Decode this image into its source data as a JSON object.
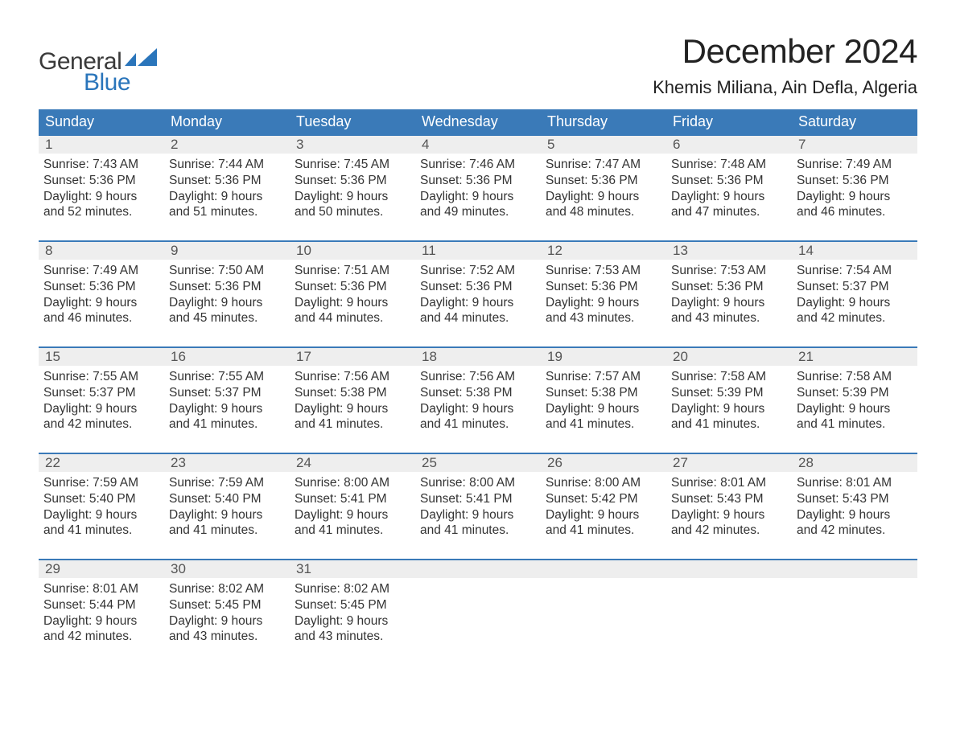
{
  "brand": {
    "word1": "General",
    "word2": "Blue",
    "mark_color": "#2a75bb"
  },
  "title": "December 2024",
  "location": "Khemis Miliana, Ain Defla, Algeria",
  "colors": {
    "header_bg": "#3a7ab8",
    "header_text": "#ffffff",
    "daynum_bg": "#eeeeee",
    "text": "#333333",
    "rule": "#3a7ab8",
    "page_bg": "#ffffff"
  },
  "weekdays": [
    "Sunday",
    "Monday",
    "Tuesday",
    "Wednesday",
    "Thursday",
    "Friday",
    "Saturday"
  ],
  "labels": {
    "sunrise": "Sunrise:",
    "sunset": "Sunset:",
    "daylight": "Daylight:"
  },
  "weeks": [
    [
      {
        "n": "1",
        "sunrise": "7:43 AM",
        "sunset": "5:36 PM",
        "daylight1": "9 hours",
        "daylight2": "and 52 minutes."
      },
      {
        "n": "2",
        "sunrise": "7:44 AM",
        "sunset": "5:36 PM",
        "daylight1": "9 hours",
        "daylight2": "and 51 minutes."
      },
      {
        "n": "3",
        "sunrise": "7:45 AM",
        "sunset": "5:36 PM",
        "daylight1": "9 hours",
        "daylight2": "and 50 minutes."
      },
      {
        "n": "4",
        "sunrise": "7:46 AM",
        "sunset": "5:36 PM",
        "daylight1": "9 hours",
        "daylight2": "and 49 minutes."
      },
      {
        "n": "5",
        "sunrise": "7:47 AM",
        "sunset": "5:36 PM",
        "daylight1": "9 hours",
        "daylight2": "and 48 minutes."
      },
      {
        "n": "6",
        "sunrise": "7:48 AM",
        "sunset": "5:36 PM",
        "daylight1": "9 hours",
        "daylight2": "and 47 minutes."
      },
      {
        "n": "7",
        "sunrise": "7:49 AM",
        "sunset": "5:36 PM",
        "daylight1": "9 hours",
        "daylight2": "and 46 minutes."
      }
    ],
    [
      {
        "n": "8",
        "sunrise": "7:49 AM",
        "sunset": "5:36 PM",
        "daylight1": "9 hours",
        "daylight2": "and 46 minutes."
      },
      {
        "n": "9",
        "sunrise": "7:50 AM",
        "sunset": "5:36 PM",
        "daylight1": "9 hours",
        "daylight2": "and 45 minutes."
      },
      {
        "n": "10",
        "sunrise": "7:51 AM",
        "sunset": "5:36 PM",
        "daylight1": "9 hours",
        "daylight2": "and 44 minutes."
      },
      {
        "n": "11",
        "sunrise": "7:52 AM",
        "sunset": "5:36 PM",
        "daylight1": "9 hours",
        "daylight2": "and 44 minutes."
      },
      {
        "n": "12",
        "sunrise": "7:53 AM",
        "sunset": "5:36 PM",
        "daylight1": "9 hours",
        "daylight2": "and 43 minutes."
      },
      {
        "n": "13",
        "sunrise": "7:53 AM",
        "sunset": "5:36 PM",
        "daylight1": "9 hours",
        "daylight2": "and 43 minutes."
      },
      {
        "n": "14",
        "sunrise": "7:54 AM",
        "sunset": "5:37 PM",
        "daylight1": "9 hours",
        "daylight2": "and 42 minutes."
      }
    ],
    [
      {
        "n": "15",
        "sunrise": "7:55 AM",
        "sunset": "5:37 PM",
        "daylight1": "9 hours",
        "daylight2": "and 42 minutes."
      },
      {
        "n": "16",
        "sunrise": "7:55 AM",
        "sunset": "5:37 PM",
        "daylight1": "9 hours",
        "daylight2": "and 41 minutes."
      },
      {
        "n": "17",
        "sunrise": "7:56 AM",
        "sunset": "5:38 PM",
        "daylight1": "9 hours",
        "daylight2": "and 41 minutes."
      },
      {
        "n": "18",
        "sunrise": "7:56 AM",
        "sunset": "5:38 PM",
        "daylight1": "9 hours",
        "daylight2": "and 41 minutes."
      },
      {
        "n": "19",
        "sunrise": "7:57 AM",
        "sunset": "5:38 PM",
        "daylight1": "9 hours",
        "daylight2": "and 41 minutes."
      },
      {
        "n": "20",
        "sunrise": "7:58 AM",
        "sunset": "5:39 PM",
        "daylight1": "9 hours",
        "daylight2": "and 41 minutes."
      },
      {
        "n": "21",
        "sunrise": "7:58 AM",
        "sunset": "5:39 PM",
        "daylight1": "9 hours",
        "daylight2": "and 41 minutes."
      }
    ],
    [
      {
        "n": "22",
        "sunrise": "7:59 AM",
        "sunset": "5:40 PM",
        "daylight1": "9 hours",
        "daylight2": "and 41 minutes."
      },
      {
        "n": "23",
        "sunrise": "7:59 AM",
        "sunset": "5:40 PM",
        "daylight1": "9 hours",
        "daylight2": "and 41 minutes."
      },
      {
        "n": "24",
        "sunrise": "8:00 AM",
        "sunset": "5:41 PM",
        "daylight1": "9 hours",
        "daylight2": "and 41 minutes."
      },
      {
        "n": "25",
        "sunrise": "8:00 AM",
        "sunset": "5:41 PM",
        "daylight1": "9 hours",
        "daylight2": "and 41 minutes."
      },
      {
        "n": "26",
        "sunrise": "8:00 AM",
        "sunset": "5:42 PM",
        "daylight1": "9 hours",
        "daylight2": "and 41 minutes."
      },
      {
        "n": "27",
        "sunrise": "8:01 AM",
        "sunset": "5:43 PM",
        "daylight1": "9 hours",
        "daylight2": "and 42 minutes."
      },
      {
        "n": "28",
        "sunrise": "8:01 AM",
        "sunset": "5:43 PM",
        "daylight1": "9 hours",
        "daylight2": "and 42 minutes."
      }
    ],
    [
      {
        "n": "29",
        "sunrise": "8:01 AM",
        "sunset": "5:44 PM",
        "daylight1": "9 hours",
        "daylight2": "and 42 minutes."
      },
      {
        "n": "30",
        "sunrise": "8:02 AM",
        "sunset": "5:45 PM",
        "daylight1": "9 hours",
        "daylight2": "and 43 minutes."
      },
      {
        "n": "31",
        "sunrise": "8:02 AM",
        "sunset": "5:45 PM",
        "daylight1": "9 hours",
        "daylight2": "and 43 minutes."
      },
      null,
      null,
      null,
      null
    ]
  ]
}
